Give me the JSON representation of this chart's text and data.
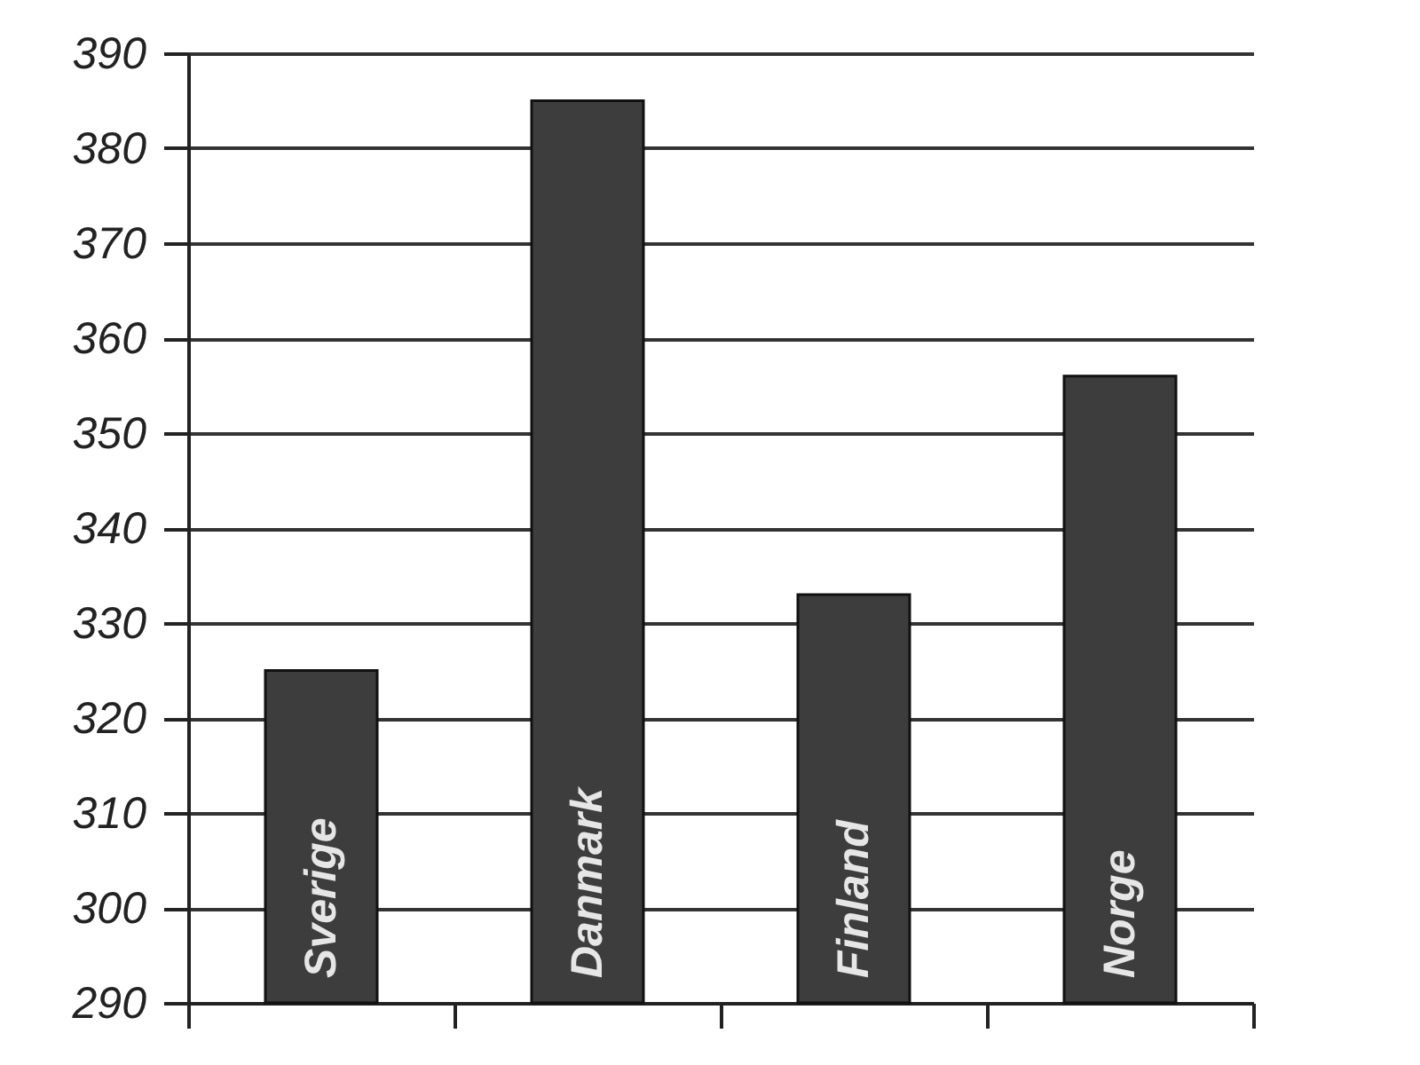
{
  "chart_data": {
    "type": "bar",
    "categories": [
      "Sverige",
      "Danmark",
      "Finland",
      "Norge"
    ],
    "values": [
      325,
      385,
      333,
      356
    ],
    "color": "#3d3d3d",
    "ylim": [
      290,
      390
    ],
    "yticks": [
      290,
      300,
      310,
      320,
      330,
      340,
      350,
      360,
      370,
      380,
      390
    ],
    "grid": "y"
  }
}
